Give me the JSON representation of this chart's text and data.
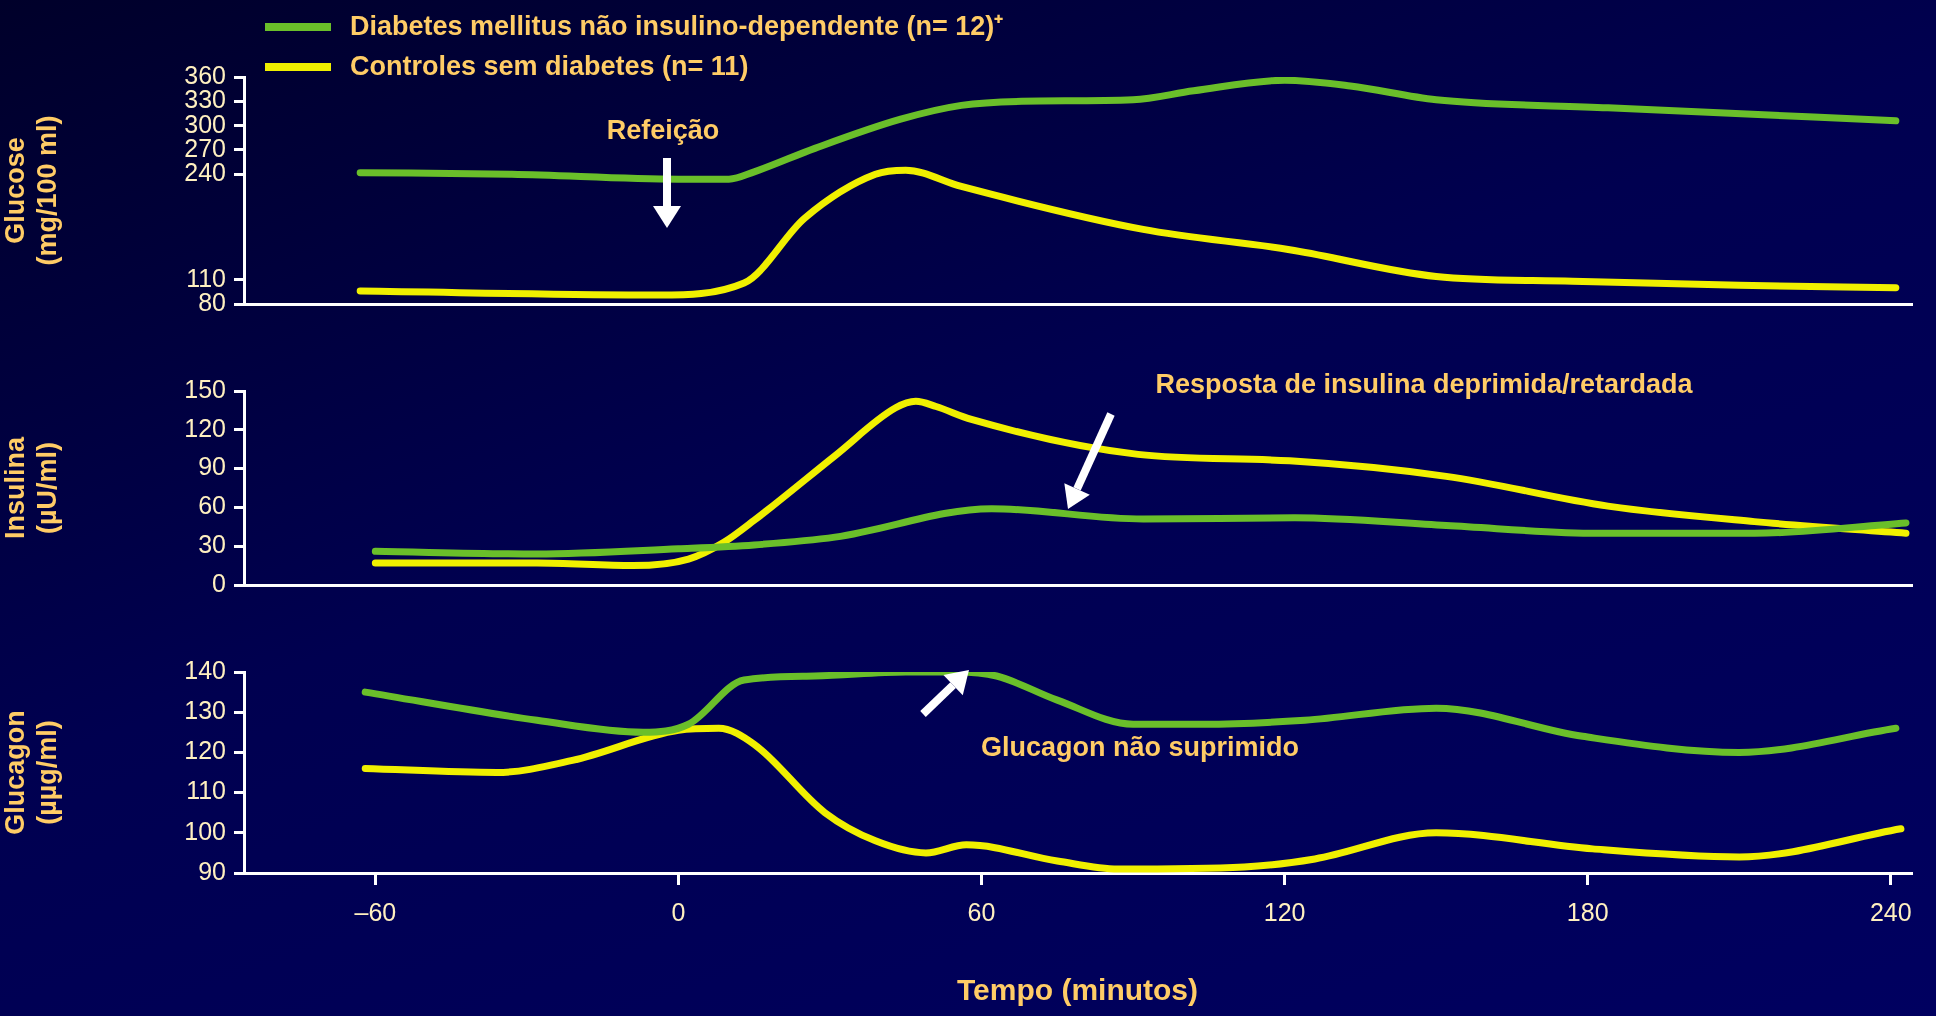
{
  "chart_data": [
    {
      "type": "line",
      "ylabel": "Glucose\n(mg/100 ml)",
      "xlim": [
        -86,
        244
      ],
      "ylim": [
        80,
        360
      ],
      "yticks": [
        80,
        110,
        240,
        270,
        300,
        330,
        360
      ],
      "tick_labels": "y",
      "legend": "top",
      "series": [
        {
          "name": "Diabetes mellitus não insulino-dependente  (n= 12)⁺",
          "color": "#6abf2a",
          "x": [
            -63,
            -33,
            0,
            10,
            15,
            27,
            44,
            56,
            68,
            90,
            102,
            120,
            133,
            150,
            184,
            241
          ],
          "values": [
            242,
            240,
            234,
            234,
            243,
            272,
            308,
            325,
            330,
            332,
            343,
            356,
            349,
            332,
            322,
            306
          ]
        },
        {
          "name": "Controles sem diabetes (n= 11)",
          "color": "#f0f000",
          "x": [
            -63,
            -4,
            13,
            25,
            39,
            45,
            56,
            92,
            121,
            150,
            177,
            210,
            241
          ],
          "values": [
            96,
            91,
            106,
            186,
            240,
            245,
            225,
            172,
            147,
            114,
            108,
            103,
            100
          ]
        }
      ],
      "annotations": [
        "Refeição"
      ]
    },
    {
      "type": "line",
      "ylabel": "Insulina\n(µU/ml)",
      "xlim": [
        -86,
        244
      ],
      "ylim": [
        0,
        150
      ],
      "yticks": [
        0,
        30,
        60,
        90,
        120,
        150
      ],
      "tick_labels": "y",
      "series": [
        {
          "color": "#6abf2a",
          "x": [
            -60,
            -28,
            0,
            15,
            31,
            62,
            92,
            122,
            152,
            182,
            213,
            243
          ],
          "values": [
            26,
            24,
            28,
            31,
            37,
            59,
            51,
            52,
            46,
            40,
            40,
            48
          ]
        },
        {
          "color": "#f0f000",
          "x": [
            -60,
            -28,
            -9,
            2,
            9,
            15,
            31,
            43,
            47,
            51,
            58,
            91,
            121,
            152,
            184,
            213,
            243
          ],
          "values": [
            17,
            17,
            15,
            20,
            33,
            50,
            100,
            137,
            142,
            138,
            128,
            101,
            96,
            84,
            61,
            49,
            40
          ]
        }
      ],
      "annotations": [
        "Resposta de insulina deprimida/retardada"
      ]
    },
    {
      "type": "line",
      "ylabel": "Glucagon\n(µµg/ml)",
      "xlabel": "Tempo (minutos)",
      "xlim": [
        -86,
        244
      ],
      "xticks": [
        {
          "value": -60,
          "label": "–60"
        },
        0,
        60,
        120,
        180,
        240
      ],
      "ylim": [
        90,
        140
      ],
      "yticks": [
        90,
        100,
        110,
        120,
        130,
        140
      ],
      "series": [
        {
          "color": "#6abf2a",
          "x": [
            -62,
            -28,
            -7,
            2,
            13,
            27,
            45,
            55,
            63,
            75,
            90,
            104,
            124,
            150,
            179,
            210,
            241
          ],
          "values": [
            135,
            128,
            125,
            127,
            138,
            139,
            140,
            140,
            139,
            133,
            127,
            127,
            128,
            131,
            124,
            120,
            126
          ]
        },
        {
          "color": "#f0f000",
          "x": [
            -62,
            -36,
            -21,
            0,
            8,
            15,
            29,
            39,
            49,
            57,
            75,
            87,
            112,
            126,
            150,
            181,
            210,
            242
          ],
          "values": [
            116,
            115,
            118,
            125.5,
            126,
            122,
            105,
            98,
            95,
            97,
            93,
            91,
            91.5,
            93.5,
            100,
            96,
            94,
            101
          ]
        }
      ],
      "annotations": [
        "Glucagon não suprimido"
      ]
    }
  ]
}
